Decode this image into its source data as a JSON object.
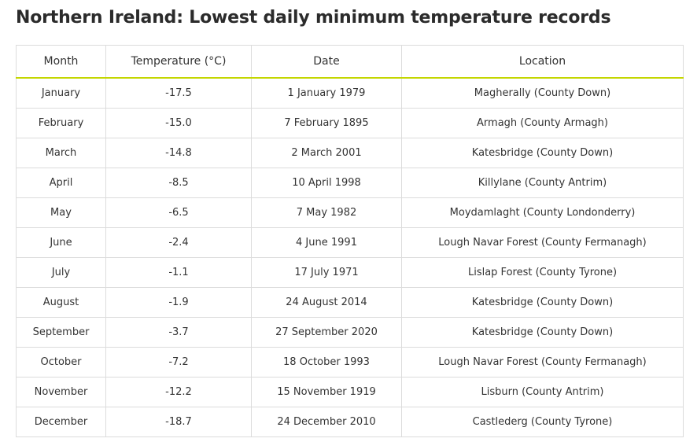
{
  "page": {
    "title": "Northern Ireland: Lowest daily minimum temperature records"
  },
  "colors": {
    "header_rule": "#c4d600",
    "border": "#dcdcdc",
    "text": "#333333"
  },
  "table": {
    "headers": [
      "Month",
      "Temperature (°C)",
      "Date",
      "Location"
    ],
    "rows": [
      [
        "January",
        "-17.5",
        "1 January 1979",
        "Magherally (County Down)"
      ],
      [
        "February",
        "-15.0",
        "7 February 1895",
        "Armagh (County Armagh)"
      ],
      [
        "March",
        "-14.8",
        "2 March 2001",
        "Katesbridge (County Down)"
      ],
      [
        "April",
        "-8.5",
        "10 April 1998",
        "Killylane (County Antrim)"
      ],
      [
        "May",
        "-6.5",
        "7 May 1982",
        "Moydamlaght (County Londonderry)"
      ],
      [
        "June",
        "-2.4",
        "4 June 1991",
        "Lough Navar Forest (County Fermanagh)"
      ],
      [
        "July",
        "-1.1",
        "17 July 1971",
        "Lislap Forest (County Tyrone)"
      ],
      [
        "August",
        "-1.9",
        "24 August 2014",
        "Katesbridge (County Down)"
      ],
      [
        "September",
        "-3.7",
        "27 September 2020",
        "Katesbridge (County Down)"
      ],
      [
        "October",
        "-7.2",
        "18 October 1993",
        "Lough Navar Forest (County Fermanagh)"
      ],
      [
        "November",
        "-12.2",
        "15 November 1919",
        "Lisburn (County Antrim)"
      ],
      [
        "December",
        "-18.7",
        "24 December 2010",
        "Castlederg (County Tyrone)"
      ]
    ]
  }
}
